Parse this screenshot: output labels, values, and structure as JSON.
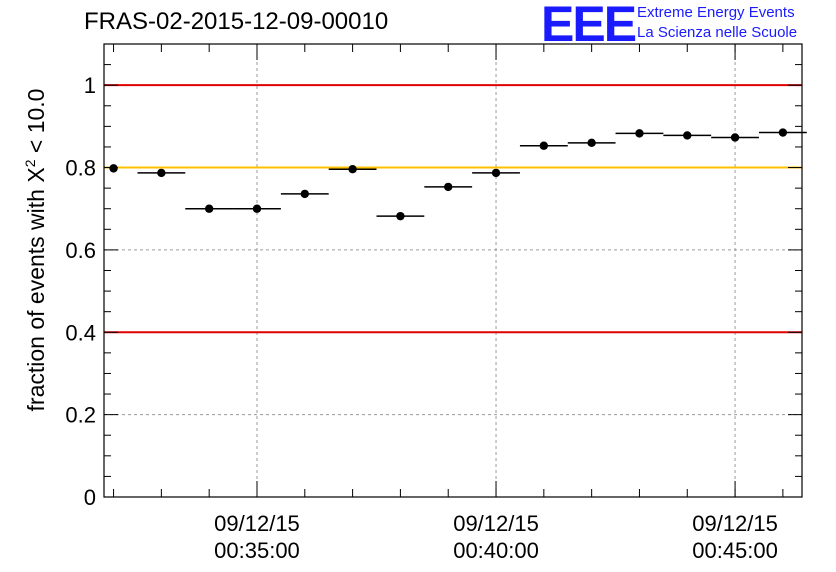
{
  "header": {
    "title": "FRAS-02-2015-12-09-00010",
    "logo_text": "EEE",
    "logo_line1": "Extreme Energy Events",
    "logo_line2": "La Scienza nelle Scuole"
  },
  "colors": {
    "red_line": "#e00000",
    "yellow_line": "#ffc000",
    "logo": "#1a1aff",
    "grid": "#9a9a9a"
  },
  "chart_data": {
    "type": "scatter",
    "ylabel_prefix": "fraction of events with X",
    "ylabel_sup": "2",
    "ylabel_suffix": " < 10.0",
    "ylim": [
      0,
      1.1
    ],
    "yticks": [
      0,
      0.2,
      0.4,
      0.6,
      0.8,
      1
    ],
    "ytick_labels": [
      "0",
      "0.2",
      "0.4",
      "0.6",
      "0.8",
      "1"
    ],
    "xlim": [
      "00:31:48",
      "00:46:24"
    ],
    "xticks": [
      {
        "time": "00:35:00",
        "label_date": "09/12/15",
        "label_time": "00:35:00"
      },
      {
        "time": "00:40:00",
        "label_date": "09/12/15",
        "label_time": "00:40:00"
      },
      {
        "time": "00:45:00",
        "label_date": "09/12/15",
        "label_time": "00:45:00"
      }
    ],
    "grid": true,
    "reference_lines": [
      {
        "y": 1.0,
        "color": "#e00000"
      },
      {
        "y": 0.8,
        "color": "#ffc000"
      },
      {
        "y": 0.4,
        "color": "#e00000"
      }
    ],
    "points": [
      {
        "t": "00:32:00",
        "y": 0.798,
        "x_err_min": 0.0
      },
      {
        "t": "00:33:00",
        "y": 0.787,
        "x_err_min": 0.5
      },
      {
        "t": "00:34:00",
        "y": 0.7,
        "x_err_min": 0.5
      },
      {
        "t": "00:35:00",
        "y": 0.7,
        "x_err_min": 0.5
      },
      {
        "t": "00:36:00",
        "y": 0.736,
        "x_err_min": 0.5
      },
      {
        "t": "00:37:00",
        "y": 0.796,
        "x_err_min": 0.5
      },
      {
        "t": "00:38:00",
        "y": 0.682,
        "x_err_min": 0.5
      },
      {
        "t": "00:39:00",
        "y": 0.753,
        "x_err_min": 0.5
      },
      {
        "t": "00:40:00",
        "y": 0.787,
        "x_err_min": 0.5
      },
      {
        "t": "00:41:00",
        "y": 0.853,
        "x_err_min": 0.5
      },
      {
        "t": "00:42:00",
        "y": 0.86,
        "x_err_min": 0.5
      },
      {
        "t": "00:43:00",
        "y": 0.883,
        "x_err_min": 0.5
      },
      {
        "t": "00:44:00",
        "y": 0.878,
        "x_err_min": 0.5
      },
      {
        "t": "00:45:00",
        "y": 0.873,
        "x_err_min": 0.5
      },
      {
        "t": "00:46:00",
        "y": 0.885,
        "x_err_min": 0.5
      }
    ]
  }
}
